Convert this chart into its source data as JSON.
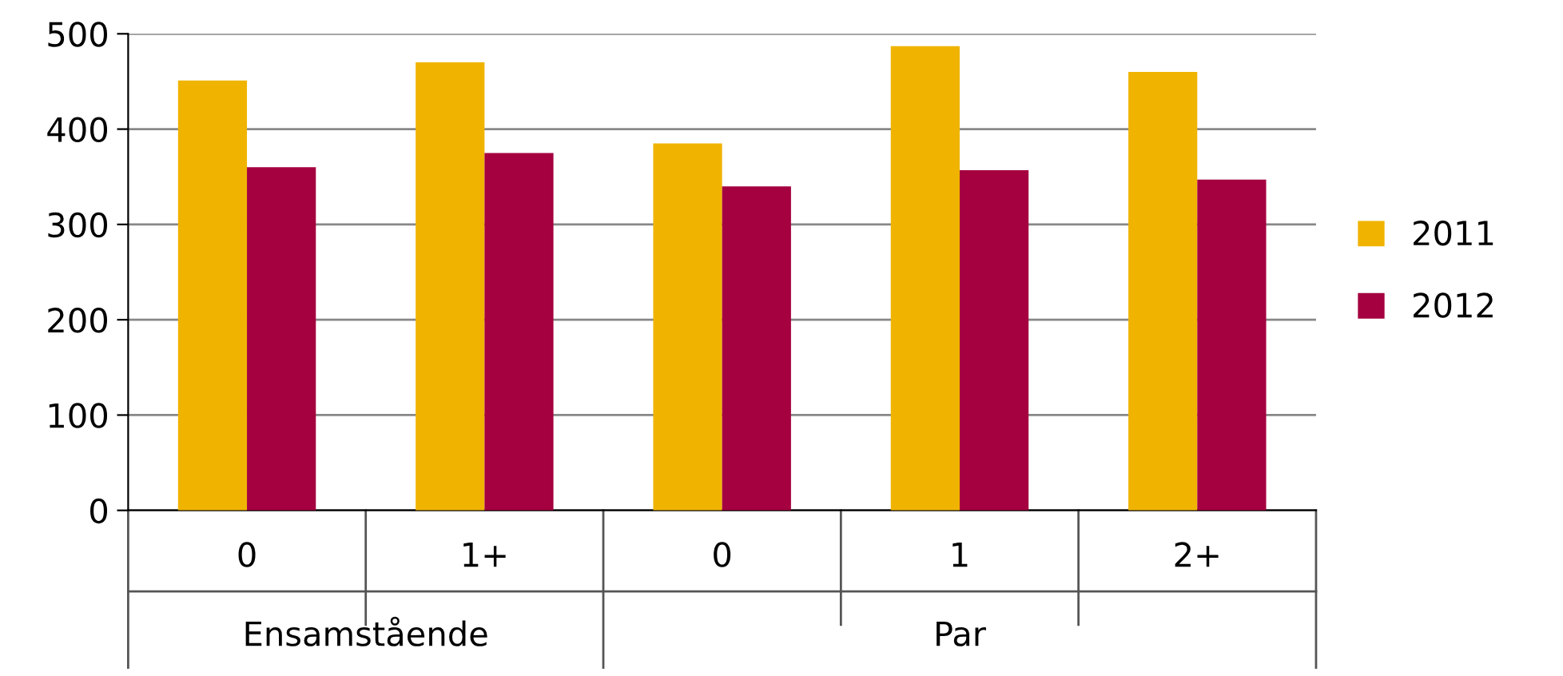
{
  "chart_data": {
    "type": "bar",
    "categories": [
      "0",
      "1+",
      "0",
      "1",
      "2+"
    ],
    "series": [
      {
        "name": "2011",
        "color": "#f0b400",
        "values": [
          451,
          470,
          385,
          487,
          460
        ]
      },
      {
        "name": "2012",
        "color": "#a5003f",
        "values": [
          360,
          375,
          340,
          357,
          347
        ]
      }
    ],
    "annotations": [
      "Ensamstående",
      "Par"
    ],
    "ylim": [
      0,
      500
    ],
    "yticks": [
      0,
      100,
      200,
      300,
      400,
      500
    ],
    "grid": "y",
    "legend": "right"
  }
}
